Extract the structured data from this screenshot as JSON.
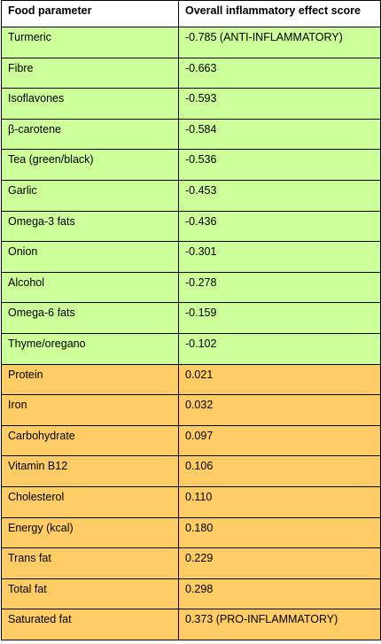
{
  "table": {
    "headers": [
      "Food parameter",
      "Overall inflammatory effect score"
    ],
    "colors": {
      "anti": "#ccff99",
      "pro": "#ffcc66",
      "header": "#ffffff"
    },
    "rows": [
      {
        "param": "Turmeric",
        "score": "-0.785  (ANTI-INFLAMMATORY)",
        "group": "anti"
      },
      {
        "param": "Fibre",
        "score": "-0.663",
        "group": "anti"
      },
      {
        "param": "Isoflavones",
        "score": "-0.593",
        "group": "anti"
      },
      {
        "param": "β-carotene",
        "score": "-0.584",
        "group": "anti"
      },
      {
        "param": "Tea (green/black)",
        "score": "-0.536",
        "group": "anti"
      },
      {
        "param": "Garlic",
        "score": "-0.453",
        "group": "anti"
      },
      {
        "param": "Omega-3 fats",
        "score": "-0.436",
        "group": "anti"
      },
      {
        "param": "Onion",
        "score": "-0.301",
        "group": "anti"
      },
      {
        "param": "Alcohol",
        "score": "-0.278",
        "group": "anti"
      },
      {
        "param": "Omega-6 fats",
        "score": "-0.159",
        "group": "anti"
      },
      {
        "param": "Thyme/oregano",
        "score": "-0.102",
        "group": "anti"
      },
      {
        "param": "Protein",
        "score": "0.021",
        "group": "pro"
      },
      {
        "param": "Iron",
        "score": "0.032",
        "group": "pro"
      },
      {
        "param": "Carbohydrate",
        "score": "0.097",
        "group": "pro"
      },
      {
        "param": "Vitamin B12",
        "score": "0.106",
        "group": "pro"
      },
      {
        "param": "Cholesterol",
        "score": "0.110",
        "group": "pro"
      },
      {
        "param": "Energy (kcal)",
        "score": "0.180",
        "group": "pro"
      },
      {
        "param": "Trans fat",
        "score": "0.229",
        "group": "pro"
      },
      {
        "param": "Total fat",
        "score": "0.298",
        "group": "pro"
      },
      {
        "param": "Saturated fat",
        "score": "0.373  (PRO-INFLAMMATORY)",
        "group": "pro"
      }
    ]
  }
}
